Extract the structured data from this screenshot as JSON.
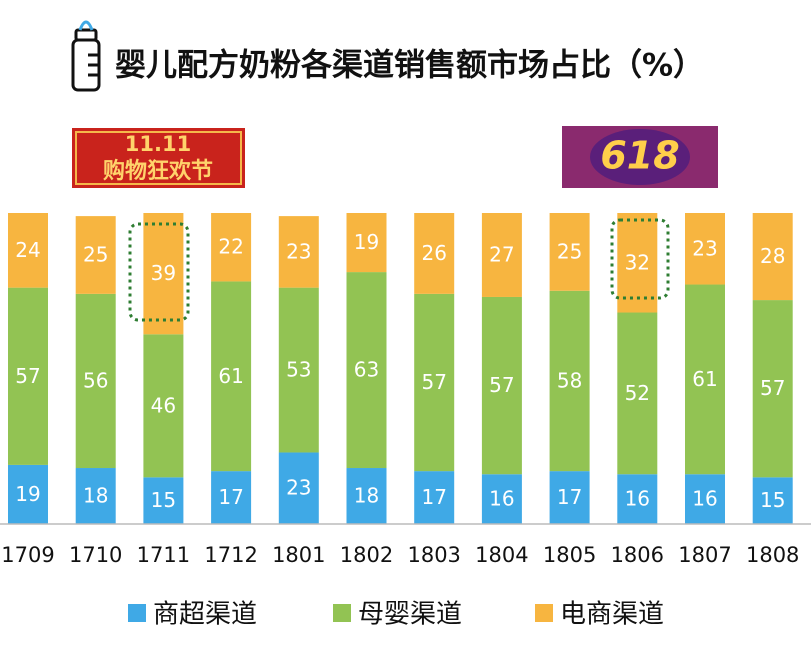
{
  "chart_data": {
    "type": "stacked_bar",
    "title": "婴儿配方奶粉各渠道销售额市场占比（%）",
    "banners": [
      "11.11",
      "购物狂欢节",
      "618"
    ],
    "categories": [
      "1709",
      "1710",
      "1711",
      "1712",
      "1801",
      "1802",
      "1803",
      "1804",
      "1805",
      "1806",
      "1807",
      "1808"
    ],
    "series": [
      {
        "name": "商超渠道",
        "color": "#3fa9e6",
        "values": [
          19,
          18,
          15,
          17,
          23,
          18,
          17,
          16,
          17,
          16,
          16,
          15
        ]
      },
      {
        "name": "母婴渠道",
        "color": "#92c353",
        "values": [
          57,
          56,
          46,
          61,
          53,
          63,
          57,
          57,
          58,
          52,
          61,
          57
        ]
      },
      {
        "name": "电商渠道",
        "color": "#f7b540",
        "values": [
          24,
          25,
          39,
          22,
          23,
          19,
          26,
          27,
          25,
          32,
          23,
          28
        ]
      }
    ],
    "ylim": [
      0,
      100
    ],
    "legend": "bottom"
  }
}
